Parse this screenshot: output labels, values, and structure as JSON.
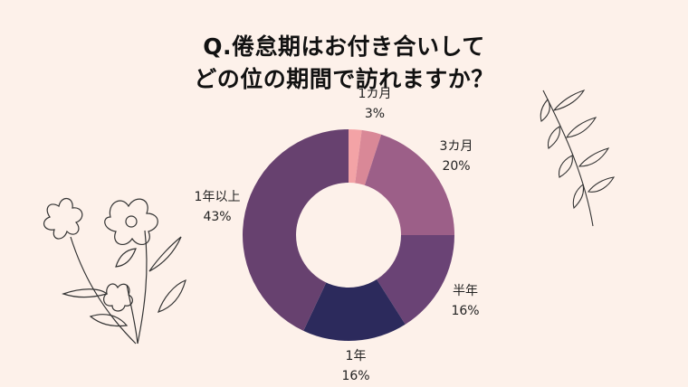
{
  "header": {
    "title_line1": "Q.倦怠期はお付き合いして",
    "title_line2": "どの位の期間で訪れますか？"
  },
  "chart_data": {
    "type": "pie",
    "title": "Q.倦怠期はお付き合いしてどの位の期間で訪れますか？",
    "legend": "none (inline labels)",
    "slices": [
      {
        "label": "",
        "percent": "",
        "value": 2,
        "color": "#f3a3a6"
      },
      {
        "label": "1カ月",
        "percent": "3%",
        "value": 3,
        "color": "#d98897"
      },
      {
        "label": "3カ月",
        "percent": "20%",
        "value": 20,
        "color": "#9c5f88"
      },
      {
        "label": "半年",
        "percent": "16%",
        "value": 16,
        "color": "#6a4375"
      },
      {
        "label": "1年",
        "percent": "16%",
        "value": 16,
        "color": "#2c2a5c"
      },
      {
        "label": "1年以上",
        "percent": "43%",
        "value": 43,
        "color": "#67416f"
      }
    ]
  }
}
